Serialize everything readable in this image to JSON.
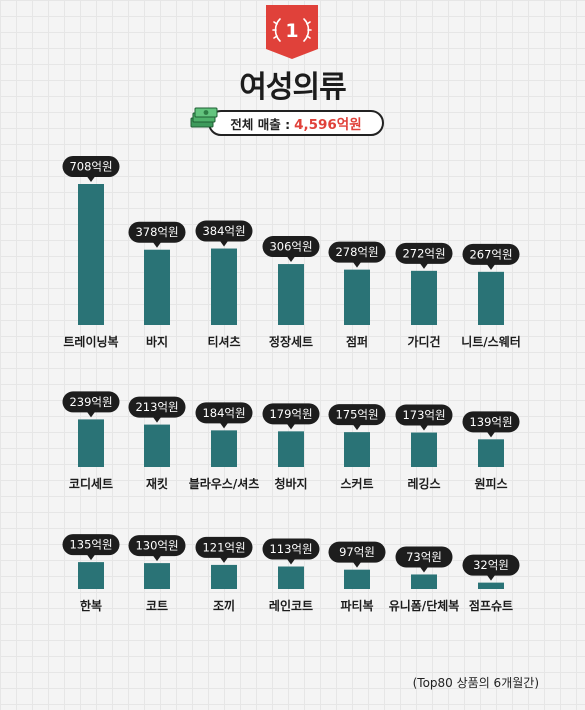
{
  "header": {
    "rank": "1",
    "title": "여성의류",
    "total_label": "전체 매출 :",
    "total_value": "4,596억원"
  },
  "footnote": "(Top80 상품의 6개월간)",
  "colors": {
    "bar": "#2a7376",
    "label_bg": "#1d1d1d",
    "accent": "#e0413a",
    "badge": "#e0413a"
  },
  "chart_data": {
    "type": "bar",
    "title": "",
    "xlabel": "",
    "ylabel": "",
    "unit": "억원",
    "rows": [
      {
        "categories": [
          "트레이닝복",
          "바지",
          "티셔츠",
          "정장세트",
          "점퍼",
          "가디건",
          "니트/스웨터"
        ],
        "values": [
          708,
          378,
          384,
          306,
          278,
          272,
          267
        ],
        "labels": [
          "708억원",
          "378억원",
          "384억원",
          "306억원",
          "278억원",
          "272억원",
          "267억원"
        ]
      },
      {
        "categories": [
          "코디세트",
          "재킷",
          "블라우스/셔츠",
          "청바지",
          "스커트",
          "레깅스",
          "원피스"
        ],
        "values": [
          239,
          213,
          184,
          179,
          175,
          173,
          139
        ],
        "labels": [
          "239억원",
          "213억원",
          "184억원",
          "179억원",
          "175억원",
          "173억원",
          "139억원"
        ]
      },
      {
        "categories": [
          "한복",
          "코트",
          "조끼",
          "레인코트",
          "파티복",
          "유니폼/단체복",
          "점프슈트"
        ],
        "values": [
          135,
          130,
          121,
          113,
          97,
          73,
          32
        ],
        "labels": [
          "135억원",
          "130억원",
          "121억원",
          "113억원",
          "97억원",
          "73억원",
          "32억원"
        ]
      }
    ]
  }
}
